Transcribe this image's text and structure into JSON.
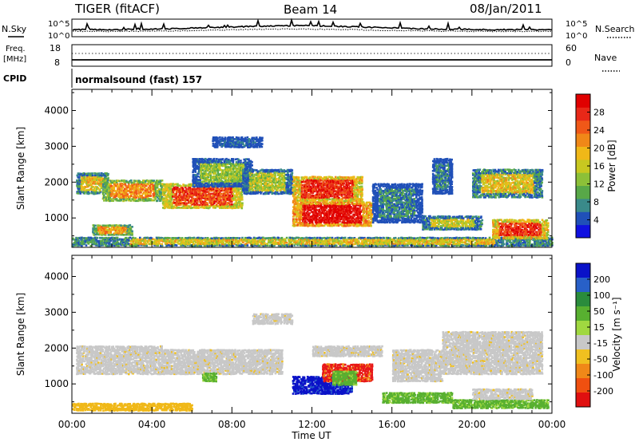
{
  "header": {
    "station": "TIGER (fitACF)",
    "beam": "Beam 14",
    "date": "08/Jan/2011"
  },
  "top_panels": {
    "nsky_label": "N.Sky",
    "nsky_ticks": [
      "10^5",
      "10^0"
    ],
    "nsearch_label": "N.Search",
    "nsearch_ticks": [
      "10^5",
      "10^0"
    ],
    "freq_label": "Freq.",
    "freq_unit": "[MHz]",
    "freq_ticks": [
      "18",
      "8"
    ],
    "nave_label": "Nave",
    "nave_ticks": [
      "60",
      "0"
    ],
    "cpid_label": "CPID",
    "cpid_text": "normalsound (fast) 157"
  },
  "chart_data": [
    {
      "type": "heatmap",
      "name": "power",
      "ylabel": "Slant Range [km]",
      "xlabel": "",
      "x_ticks": [
        "00:00",
        "04:00",
        "08:00",
        "12:00",
        "16:00",
        "20:00",
        "00:00"
      ],
      "xlim_hours": [
        0,
        24
      ],
      "y_ticks": [
        1000,
        2000,
        3000,
        4000
      ],
      "ylim": [
        180,
        4590
      ],
      "colorbar": {
        "label": "Power [dB]",
        "ticks": [
          "4",
          "8",
          "12",
          "16",
          "20",
          "24",
          "28"
        ],
        "colors": [
          "#1010e0",
          "#2050b8",
          "#3a8a8a",
          "#58a848",
          "#8cc038",
          "#c8c820",
          "#f0b818",
          "#f08818",
          "#f05818",
          "#e82818",
          "#e00000"
        ]
      },
      "blobs": [
        {
          "t0": 0.2,
          "t1": 1.8,
          "r0": 1700,
          "r1": 2300,
          "level": 0.55
        },
        {
          "t0": 1.5,
          "t1": 4.5,
          "r0": 1500,
          "r1": 2100,
          "level": 0.7
        },
        {
          "t0": 4.5,
          "t1": 8.5,
          "r0": 1300,
          "r1": 2000,
          "level": 0.85
        },
        {
          "t0": 6.0,
          "t1": 9.0,
          "r0": 1900,
          "r1": 2700,
          "level": 0.4
        },
        {
          "t0": 8.5,
          "t1": 11.0,
          "r0": 1700,
          "r1": 2400,
          "level": 0.45
        },
        {
          "t0": 11.0,
          "t1": 15.0,
          "r0": 800,
          "r1": 1500,
          "level": 1.0
        },
        {
          "t0": 11.0,
          "t1": 14.5,
          "r0": 1500,
          "r1": 2200,
          "level": 0.9
        },
        {
          "t0": 15.0,
          "t1": 17.5,
          "r0": 900,
          "r1": 2000,
          "level": 0.2
        },
        {
          "t0": 0.0,
          "t1": 24.0,
          "r0": 250,
          "r1": 500,
          "level": 0.55
        },
        {
          "t0": 18.0,
          "t1": 19.0,
          "r0": 1700,
          "r1": 2700,
          "level": 0.2
        },
        {
          "t0": 20.0,
          "t1": 23.5,
          "r0": 1600,
          "r1": 2400,
          "level": 0.55
        },
        {
          "t0": 21.0,
          "t1": 23.8,
          "r0": 450,
          "r1": 1000,
          "level": 0.9
        },
        {
          "t0": 1.0,
          "t1": 3.0,
          "r0": 550,
          "r1": 850,
          "level": 0.65
        },
        {
          "t0": 7.0,
          "t1": 9.5,
          "r0": 3000,
          "r1": 3300,
          "level": 0.1
        },
        {
          "t0": 17.5,
          "t1": 20.5,
          "r0": 700,
          "r1": 1100,
          "level": 0.5
        }
      ]
    },
    {
      "type": "heatmap",
      "name": "velocity",
      "ylabel": "Slant Range [km]",
      "xlabel": "Time UT",
      "x_ticks": [
        "00:00",
        "04:00",
        "08:00",
        "12:00",
        "16:00",
        "20:00",
        "00:00"
      ],
      "xlim_hours": [
        0,
        24
      ],
      "y_ticks": [
        1000,
        2000,
        3000,
        4000
      ],
      "ylim": [
        180,
        4590
      ],
      "colorbar": {
        "label": "Velocity [m s⁻¹]",
        "ticks": [
          "200",
          "100",
          "50",
          "15",
          "-15",
          "-50",
          "-100",
          "-200"
        ],
        "colors": [
          "#0a12c8",
          "#2860c8",
          "#2a8c3c",
          "#58b030",
          "#a0d840",
          "#c8c8c8",
          "#f0c020",
          "#f08818",
          "#f05010",
          "#e01010"
        ]
      },
      "blobs": [
        {
          "t0": 0.2,
          "t1": 4.5,
          "r0": 1300,
          "r1": 2100,
          "level": "gray"
        },
        {
          "t0": 4.5,
          "t1": 10.5,
          "r0": 1300,
          "r1": 2000,
          "level": "gray"
        },
        {
          "t0": 0.0,
          "t1": 6.0,
          "r0": 280,
          "r1": 500,
          "level": "orange"
        },
        {
          "t0": 6.5,
          "t1": 7.2,
          "r0": 1100,
          "r1": 1350,
          "level": "green"
        },
        {
          "t0": 11.0,
          "t1": 14.0,
          "r0": 750,
          "r1": 1250,
          "level": "blue"
        },
        {
          "t0": 12.5,
          "t1": 15.0,
          "r0": 1100,
          "r1": 1600,
          "level": "red"
        },
        {
          "t0": 13.0,
          "t1": 14.2,
          "r0": 1000,
          "r1": 1400,
          "level": "green"
        },
        {
          "t0": 12.0,
          "t1": 15.5,
          "r0": 1800,
          "r1": 2100,
          "level": "gray"
        },
        {
          "t0": 15.5,
          "t1": 19.0,
          "r0": 500,
          "r1": 800,
          "level": "green"
        },
        {
          "t0": 16.0,
          "t1": 18.5,
          "r0": 1100,
          "r1": 2000,
          "level": "gray"
        },
        {
          "t0": 18.5,
          "t1": 23.5,
          "r0": 1300,
          "r1": 2500,
          "level": "gray"
        },
        {
          "t0": 19.0,
          "t1": 23.8,
          "r0": 350,
          "r1": 600,
          "level": "green"
        },
        {
          "t0": 20.0,
          "t1": 23.0,
          "r0": 600,
          "r1": 900,
          "level": "gray"
        },
        {
          "t0": 9.0,
          "t1": 11.0,
          "r0": 2700,
          "r1": 3000,
          "level": "gray"
        }
      ]
    }
  ]
}
